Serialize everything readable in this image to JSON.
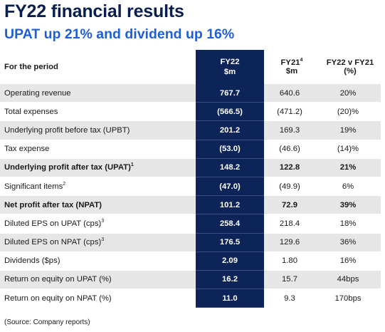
{
  "title": "FY22 financial results",
  "subtitle": "UPAT up 21% and dividend up 16%",
  "table": {
    "headers": {
      "label": "For the period",
      "fy22_line1": "FY22",
      "fy22_line2": "$m",
      "fy21_line1": "FY21",
      "fy21_sup": "4",
      "fy21_line2": "$m",
      "var_line1": "FY22 v FY21",
      "var_line2": "(%)"
    },
    "rows": [
      {
        "label": "Operating revenue",
        "sup": "",
        "fy22": "767.7",
        "fy21": "640.6",
        "var": "20%",
        "bold": false
      },
      {
        "label": "Total expenses",
        "sup": "",
        "fy22": "(566.5)",
        "fy21": "(471.2)",
        "var": "(20)%",
        "bold": false
      },
      {
        "label": "Underlying profit before tax (UPBT)",
        "sup": "",
        "fy22": "201.2",
        "fy21": "169.3",
        "var": "19%",
        "bold": false
      },
      {
        "label": "Tax expense",
        "sup": "",
        "fy22": "(53.0)",
        "fy21": "(46.6)",
        "var": "(14)%",
        "bold": false
      },
      {
        "label": "Underlying profit after tax (UPAT)",
        "sup": "1",
        "fy22": "148.2",
        "fy21": "122.8",
        "var": "21%",
        "bold": true
      },
      {
        "label": "Significant items",
        "sup": "2",
        "fy22": "(47.0)",
        "fy21": "(49.9)",
        "var": "6%",
        "bold": false
      },
      {
        "label": "Net profit after tax (NPAT)",
        "sup": "",
        "fy22": "101.2",
        "fy21": "72.9",
        "var": "39%",
        "bold": true
      },
      {
        "label": "Diluted EPS on UPAT (cps)",
        "sup": "3",
        "fy22": "258.4",
        "fy21": "218.4",
        "var": "18%",
        "bold": false
      },
      {
        "label": "Diluted EPS on NPAT (cps)",
        "sup": "3",
        "fy22": "176.5",
        "fy21": "129.6",
        "var": "36%",
        "bold": false
      },
      {
        "label": "Dividends ($ps)",
        "sup": "",
        "fy22": "2.09",
        "fy21": "1.80",
        "var": "16%",
        "bold": false
      },
      {
        "label": "Return on equity on UPAT (%)",
        "sup": "",
        "fy22": "16.2",
        "fy21": "15.7",
        "var": "44bps",
        "bold": false
      },
      {
        "label": "Return on equity on NPAT (%)",
        "sup": "",
        "fy22": "11.0",
        "fy21": "9.3",
        "var": "170bps",
        "bold": false
      }
    ]
  },
  "source": "(Source: Company reports)"
}
